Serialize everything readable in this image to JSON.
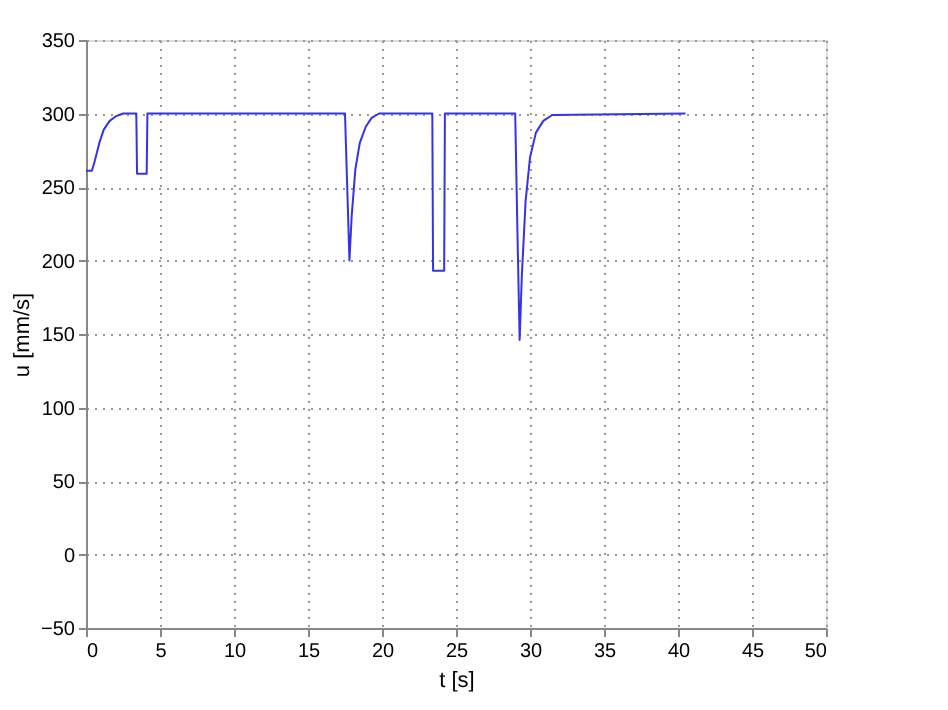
{
  "chart_data": {
    "type": "line",
    "xlabel": "t [s]",
    "ylabel": "u [mm/s]",
    "xlim": [
      0,
      50
    ],
    "xticks": [
      0,
      5,
      10,
      15,
      20,
      25,
      30,
      35,
      40,
      45,
      50
    ],
    "ylim": [
      -50,
      350
    ],
    "yticks": [
      -50,
      0,
      50,
      100,
      150,
      200,
      250,
      300,
      350
    ],
    "grid": true,
    "marker": "none",
    "line_style": "solid",
    "series": [
      {
        "color": "#3333ee",
        "x": [
          0,
          0.4,
          0.6,
          0.9,
          1.2,
          1.6,
          2.0,
          2.5,
          3.4,
          3.45,
          4.1,
          4.15,
          17.5,
          17.65,
          17.8,
          17.95,
          18.2,
          18.5,
          18.9,
          19.3,
          19.8,
          23.4,
          23.45,
          24.2,
          24.25,
          29.0,
          29.15,
          29.3,
          29.45,
          29.7,
          30.0,
          30.4,
          30.9,
          31.5,
          40.5
        ],
        "values": [
          261,
          261,
          268,
          280,
          289,
          295,
          298,
          300,
          300,
          259,
          259,
          300,
          300,
          250,
          200,
          230,
          262,
          280,
          291,
          297,
          300,
          300,
          193,
          193,
          300,
          300,
          220,
          146,
          190,
          240,
          270,
          287,
          295,
          299,
          300
        ]
      }
    ]
  }
}
